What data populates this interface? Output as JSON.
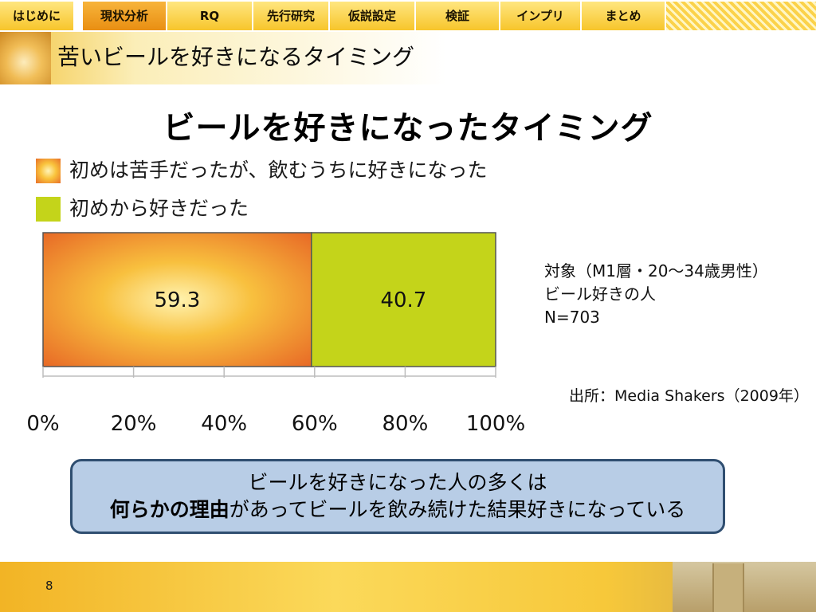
{
  "nav": {
    "tabs": [
      {
        "label": "はじめに",
        "active": false
      },
      {
        "label": "現状分析",
        "active": true
      },
      {
        "label": "RQ",
        "active": false
      },
      {
        "label": "先行研究",
        "active": false
      },
      {
        "label": "仮説設定",
        "active": false
      },
      {
        "label": "検証",
        "active": false
      },
      {
        "label": "インプリ",
        "active": false
      },
      {
        "label": "まとめ",
        "active": false
      }
    ]
  },
  "header": {
    "title": "苦いビールを好きになるタイミング"
  },
  "chart_data": {
    "type": "bar",
    "stacked": true,
    "orientation": "horizontal",
    "title": "ビールを好きになったタイミング",
    "series": [
      {
        "name": "初めは苦手だったが、飲むうちに好きになった",
        "values": [
          59.3
        ],
        "color": "#e8702a"
      },
      {
        "name": "初めから好きだった",
        "values": [
          40.7
        ],
        "color": "#c4d41a"
      }
    ],
    "xlim": [
      0,
      100
    ],
    "xticks": [
      "0%",
      "20%",
      "40%",
      "60%",
      "80%",
      "100%"
    ],
    "xtick_values": [
      0,
      20,
      40,
      60,
      80,
      100
    ],
    "legend": "top-left",
    "grid": false
  },
  "notes": {
    "line1": "対象（M1層・20～34歳男性）",
    "line2": "ビール好きの人",
    "line3": "N=703"
  },
  "source": "出所：Media Shakers（2009年）",
  "conclusion": {
    "line1": "ビールを好きになった人の多くは",
    "line2_bold": "何らかの理由",
    "line2_rest": "があってビールを飲み続けた結果好きになっている"
  },
  "footer": {
    "page_number": "8"
  }
}
